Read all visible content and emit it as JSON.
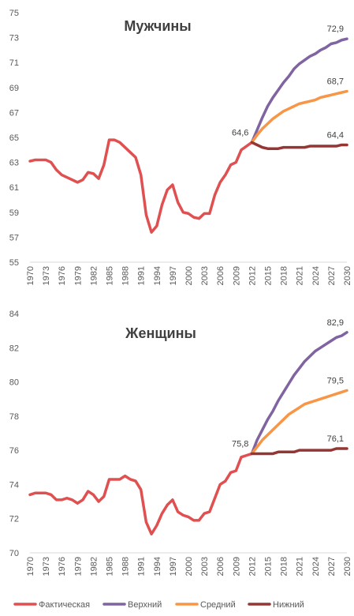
{
  "chart_data": [
    {
      "type": "line",
      "title": "Мужчины",
      "ylim": [
        55,
        75
      ],
      "yticks": [
        55,
        57,
        59,
        61,
        63,
        65,
        67,
        69,
        71,
        73,
        75
      ],
      "xlim": [
        1970,
        2030
      ],
      "xticks": [
        1970,
        1973,
        1976,
        1979,
        1982,
        1985,
        1988,
        1991,
        1994,
        1997,
        2000,
        2003,
        2006,
        2009,
        2012,
        2015,
        2018,
        2021,
        2024,
        2027,
        2030
      ],
      "grid": false,
      "series": [
        {
          "key": "actual",
          "color": "#e05050",
          "x": [
            1970,
            1971,
            1972,
            1973,
            1974,
            1975,
            1976,
            1977,
            1978,
            1979,
            1980,
            1981,
            1982,
            1983,
            1984,
            1985,
            1986,
            1987,
            1988,
            1989,
            1990,
            1991,
            1992,
            1993,
            1994,
            1995,
            1996,
            1997,
            1998,
            1999,
            2000,
            2001,
            2002,
            2003,
            2004,
            2005,
            2006,
            2007,
            2008,
            2009,
            2010,
            2011,
            2012
          ],
          "values": [
            63.1,
            63.2,
            63.2,
            63.2,
            63.0,
            62.4,
            62.0,
            61.8,
            61.6,
            61.4,
            61.6,
            62.2,
            62.1,
            61.7,
            62.8,
            64.8,
            64.8,
            64.6,
            64.2,
            63.8,
            63.4,
            62.0,
            58.8,
            57.4,
            57.9,
            59.6,
            60.8,
            61.2,
            59.8,
            59.0,
            58.9,
            58.6,
            58.5,
            58.9,
            58.9,
            60.4,
            61.4,
            62.0,
            62.8,
            63.0,
            64.0,
            64.3,
            64.6
          ]
        },
        {
          "key": "upper",
          "color": "#8064a2",
          "x": [
            2012,
            2013,
            2014,
            2015,
            2016,
            2017,
            2018,
            2019,
            2020,
            2021,
            2022,
            2023,
            2024,
            2025,
            2026,
            2027,
            2028,
            2029,
            2030
          ],
          "values": [
            64.6,
            65.6,
            66.6,
            67.5,
            68.2,
            68.8,
            69.4,
            69.9,
            70.5,
            70.9,
            71.2,
            71.5,
            71.7,
            72.0,
            72.2,
            72.5,
            72.6,
            72.8,
            72.9
          ]
        },
        {
          "key": "middle",
          "color": "#f79646",
          "x": [
            2012,
            2013,
            2014,
            2015,
            2016,
            2017,
            2018,
            2019,
            2020,
            2021,
            2022,
            2023,
            2024,
            2025,
            2026,
            2027,
            2028,
            2029,
            2030
          ],
          "values": [
            64.6,
            65.2,
            65.7,
            66.1,
            66.5,
            66.8,
            67.1,
            67.3,
            67.5,
            67.7,
            67.8,
            67.9,
            68.0,
            68.2,
            68.3,
            68.4,
            68.5,
            68.6,
            68.7
          ]
        },
        {
          "key": "lower",
          "color": "#943634",
          "x": [
            2012,
            2013,
            2014,
            2015,
            2016,
            2017,
            2018,
            2019,
            2020,
            2021,
            2022,
            2023,
            2024,
            2025,
            2026,
            2027,
            2028,
            2029,
            2030
          ],
          "values": [
            64.6,
            64.4,
            64.2,
            64.1,
            64.1,
            64.1,
            64.2,
            64.2,
            64.2,
            64.2,
            64.2,
            64.3,
            64.3,
            64.3,
            64.3,
            64.3,
            64.3,
            64.4,
            64.4
          ]
        }
      ],
      "annotations": [
        {
          "x": 2012,
          "y": 64.6,
          "text": "64,6",
          "anchor": "end"
        },
        {
          "x": 2030,
          "y": 72.9,
          "text": "72,9",
          "anchor": "end"
        },
        {
          "x": 2030,
          "y": 68.7,
          "text": "68,7",
          "anchor": "end"
        },
        {
          "x": 2030,
          "y": 64.4,
          "text": "64,4",
          "anchor": "end"
        }
      ]
    },
    {
      "type": "line",
      "title": "Женщины",
      "ylim": [
        70,
        84
      ],
      "yticks": [
        70,
        72,
        74,
        76,
        78,
        80,
        82,
        84
      ],
      "xlim": [
        1970,
        2030
      ],
      "xticks": [
        1970,
        1973,
        1976,
        1979,
        1982,
        1985,
        1988,
        1991,
        1994,
        1997,
        2000,
        2003,
        2006,
        2009,
        2012,
        2015,
        2018,
        2021,
        2024,
        2027,
        2030
      ],
      "grid": false,
      "series": [
        {
          "key": "actual",
          "color": "#e05050",
          "x": [
            1970,
            1971,
            1972,
            1973,
            1974,
            1975,
            1976,
            1977,
            1978,
            1979,
            1980,
            1981,
            1982,
            1983,
            1984,
            1985,
            1986,
            1987,
            1988,
            1989,
            1990,
            1991,
            1992,
            1993,
            1994,
            1995,
            1996,
            1997,
            1998,
            1999,
            2000,
            2001,
            2002,
            2003,
            2004,
            2005,
            2006,
            2007,
            2008,
            2009,
            2010,
            2011,
            2012
          ],
          "values": [
            73.4,
            73.5,
            73.5,
            73.5,
            73.4,
            73.1,
            73.1,
            73.2,
            73.1,
            72.9,
            73.1,
            73.6,
            73.4,
            73.0,
            73.3,
            74.3,
            74.3,
            74.3,
            74.5,
            74.3,
            74.2,
            73.7,
            71.8,
            71.1,
            71.6,
            72.3,
            72.8,
            73.1,
            72.4,
            72.2,
            72.1,
            71.9,
            71.9,
            72.3,
            72.4,
            73.2,
            74.0,
            74.2,
            74.7,
            74.8,
            75.6,
            75.7,
            75.8
          ]
        },
        {
          "key": "upper",
          "color": "#8064a2",
          "x": [
            2012,
            2013,
            2014,
            2015,
            2016,
            2017,
            2018,
            2019,
            2020,
            2021,
            2022,
            2023,
            2024,
            2025,
            2026,
            2027,
            2028,
            2029,
            2030
          ],
          "values": [
            75.8,
            76.6,
            77.2,
            77.8,
            78.3,
            78.9,
            79.4,
            79.9,
            80.4,
            80.8,
            81.2,
            81.5,
            81.8,
            82.0,
            82.2,
            82.4,
            82.6,
            82.7,
            82.9
          ]
        },
        {
          "key": "middle",
          "color": "#f79646",
          "x": [
            2012,
            2013,
            2014,
            2015,
            2016,
            2017,
            2018,
            2019,
            2020,
            2021,
            2022,
            2023,
            2024,
            2025,
            2026,
            2027,
            2028,
            2029,
            2030
          ],
          "values": [
            75.8,
            76.2,
            76.6,
            76.9,
            77.2,
            77.5,
            77.8,
            78.1,
            78.3,
            78.5,
            78.7,
            78.8,
            78.9,
            79.0,
            79.1,
            79.2,
            79.3,
            79.4,
            79.5
          ]
        },
        {
          "key": "lower",
          "color": "#943634",
          "x": [
            2012,
            2013,
            2014,
            2015,
            2016,
            2017,
            2018,
            2019,
            2020,
            2021,
            2022,
            2023,
            2024,
            2025,
            2026,
            2027,
            2028,
            2029,
            2030
          ],
          "values": [
            75.8,
            75.8,
            75.8,
            75.8,
            75.8,
            75.9,
            75.9,
            75.9,
            75.9,
            76.0,
            76.0,
            76.0,
            76.0,
            76.0,
            76.0,
            76.0,
            76.1,
            76.1,
            76.1
          ]
        }
      ],
      "annotations": [
        {
          "x": 2012,
          "y": 75.8,
          "text": "75,8",
          "anchor": "end"
        },
        {
          "x": 2030,
          "y": 82.9,
          "text": "82,9",
          "anchor": "end"
        },
        {
          "x": 2030,
          "y": 79.5,
          "text": "79,5",
          "anchor": "end"
        },
        {
          "x": 2030,
          "y": 76.1,
          "text": "76,1",
          "anchor": "end"
        }
      ]
    }
  ],
  "legend": {
    "placement": "bottom",
    "items": [
      {
        "key": "actual",
        "label": "Фактическая",
        "color": "#e05050"
      },
      {
        "key": "upper",
        "label": "Верхний",
        "color": "#8064a2"
      },
      {
        "key": "middle",
        "label": "Средний",
        "color": "#f79646"
      },
      {
        "key": "lower",
        "label": "Нижний",
        "color": "#943634"
      }
    ]
  }
}
